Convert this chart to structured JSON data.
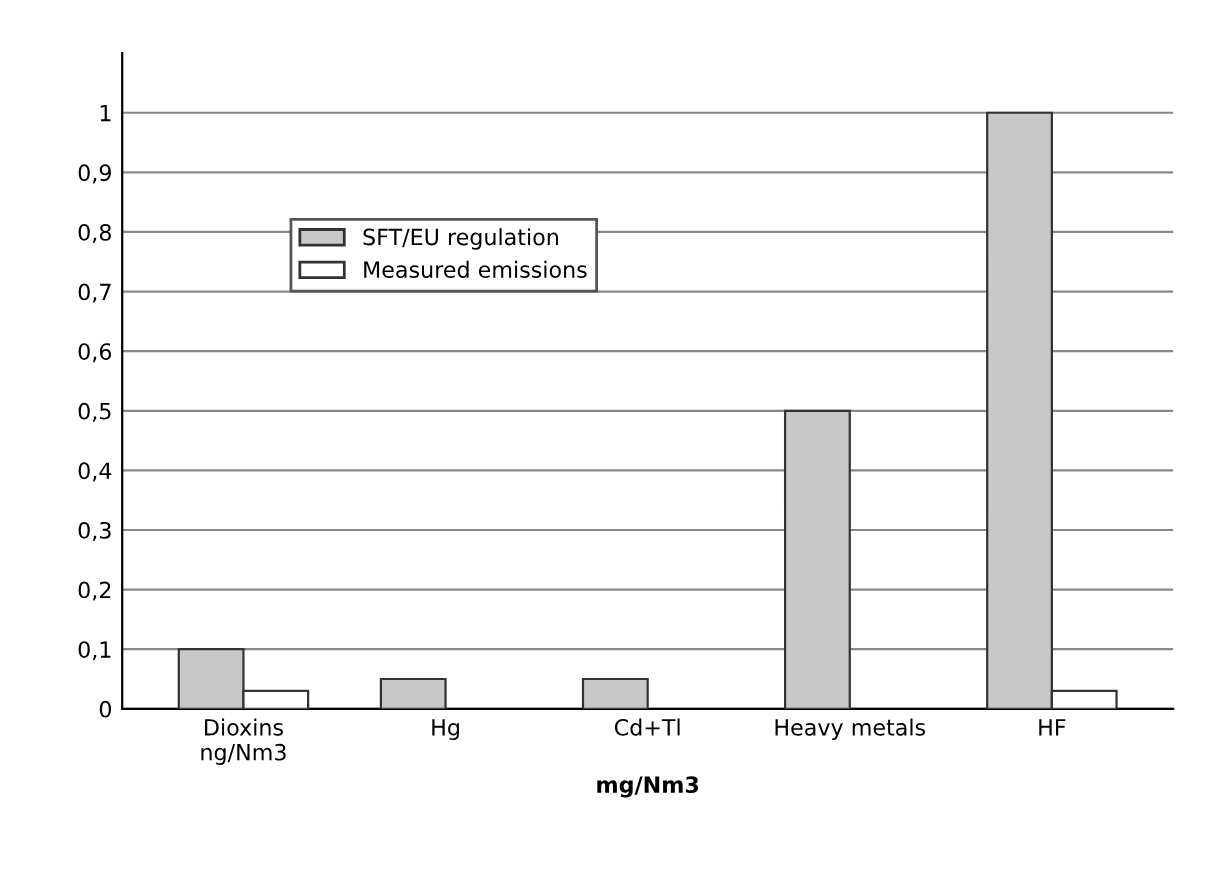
{
  "chart_data": {
    "type": "bar",
    "xlabel": "mg/Nm3",
    "categories": [
      "Dioxins\nng/Nm3",
      "Hg",
      "Cd+Tl",
      "Heavy metals",
      "HF"
    ],
    "series": [
      {
        "name": "SFT/EU regulation",
        "color": "#c8c8c8",
        "values": [
          0.1,
          0.05,
          0.05,
          0.5,
          1
        ]
      },
      {
        "name": "Measured emissions",
        "color": "#ffffff",
        "values": [
          0.03,
          null,
          null,
          null,
          0.03
        ]
      }
    ],
    "ylim": [
      0,
      1.1
    ],
    "yticks": [
      0,
      {
        "value": 0.1,
        "label": "0,1"
      },
      {
        "value": 0.2,
        "label": "0,2"
      },
      {
        "value": 0.3,
        "label": "0,3"
      },
      {
        "value": 0.4,
        "label": "0,4"
      },
      {
        "value": 0.5,
        "label": "0,5"
      },
      {
        "value": 0.6,
        "label": "0,6"
      },
      {
        "value": 0.7,
        "label": "0,7"
      },
      {
        "value": 0.8,
        "label": "0,8"
      },
      {
        "value": 0.9,
        "label": "0,9"
      },
      1
    ],
    "grid": "y",
    "legend": "top left"
  }
}
